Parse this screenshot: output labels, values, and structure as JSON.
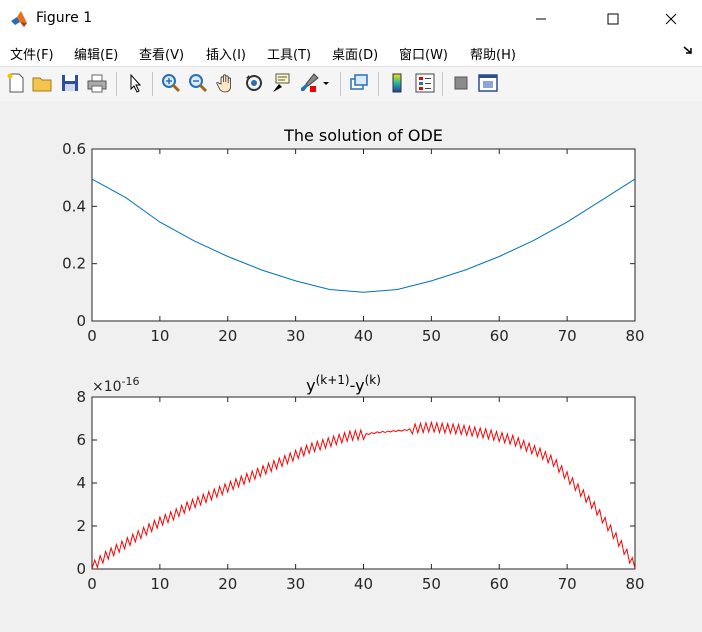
{
  "window": {
    "title": "Figure 1"
  },
  "menu": [
    {
      "label": "文件(F)"
    },
    {
      "label": "编辑(E)"
    },
    {
      "label": "查看(V)"
    },
    {
      "label": "插入(I)"
    },
    {
      "label": "工具(T)"
    },
    {
      "label": "桌面(D)"
    },
    {
      "label": "窗口(W)"
    },
    {
      "label": "帮助(H)"
    }
  ],
  "toolbar": [
    "new-figure-icon",
    "open-file-icon",
    "save-icon",
    "print-icon",
    "pointer-icon",
    "zoom-in-icon",
    "zoom-out-icon",
    "pan-hand-icon",
    "rotate-3d-icon",
    "data-cursor-icon",
    "brush-icon",
    "link-plot-icon",
    "colorbar-icon",
    "legend-icon",
    "hide-plot-tools-icon",
    "show-plot-tools-icon"
  ],
  "colors": {
    "line1": "#0072bd",
    "line2": "#ff0000"
  },
  "chart_data": [
    {
      "type": "line",
      "title": "The solution of ODE",
      "xlim": [
        0,
        80
      ],
      "ylim": [
        0,
        0.6
      ],
      "xticks": [
        "0",
        "10",
        "20",
        "30",
        "40",
        "50",
        "60",
        "70",
        "80"
      ],
      "yticks": [
        "0",
        "0.2",
        "0.4",
        "0.6"
      ],
      "series": [
        {
          "x": [
            0,
            5,
            10,
            15,
            20,
            25,
            30,
            35,
            40,
            45,
            50,
            55,
            60,
            65,
            70,
            75,
            80
          ],
          "y": [
            0.495,
            0.43,
            0.345,
            0.28,
            0.225,
            0.178,
            0.14,
            0.11,
            0.1,
            0.11,
            0.14,
            0.178,
            0.225,
            0.28,
            0.345,
            0.42,
            0.495
          ]
        }
      ]
    },
    {
      "type": "line",
      "title_main": "y",
      "title_sup1": "(k+1)",
      "title_mid": "-y",
      "title_sup2": "(k)",
      "exponent_label": "×10",
      "exponent_sup": "-16",
      "xlim": [
        0,
        80
      ],
      "ylim": [
        0,
        8
      ],
      "xticks": [
        "0",
        "10",
        "20",
        "30",
        "40",
        "50",
        "60",
        "70",
        "80"
      ],
      "yticks": [
        "0",
        "2",
        "4",
        "6",
        "8"
      ],
      "series": [
        {
          "x": [
            0,
            2,
            4,
            6,
            8,
            10,
            12,
            14,
            16,
            18,
            20,
            22,
            24,
            26,
            28,
            30,
            32,
            34,
            36,
            38,
            40,
            42,
            44,
            46,
            48,
            50,
            52,
            54,
            56,
            58,
            60,
            62,
            64,
            66,
            68,
            70,
            72,
            74,
            76,
            78,
            80
          ],
          "y": [
            0.1,
            0.6,
            1.0,
            1.4,
            1.8,
            2.2,
            2.5,
            2.9,
            3.2,
            3.5,
            3.8,
            4.1,
            4.4,
            4.7,
            5.0,
            5.3,
            5.6,
            5.8,
            6.0,
            6.2,
            6.25,
            6.35,
            6.4,
            6.45,
            6.55,
            6.6,
            6.55,
            6.5,
            6.4,
            6.3,
            6.15,
            6.0,
            5.7,
            5.4,
            5.0,
            4.3,
            3.6,
            2.9,
            2.0,
            1.1,
            0.1
          ]
        }
      ]
    }
  ]
}
